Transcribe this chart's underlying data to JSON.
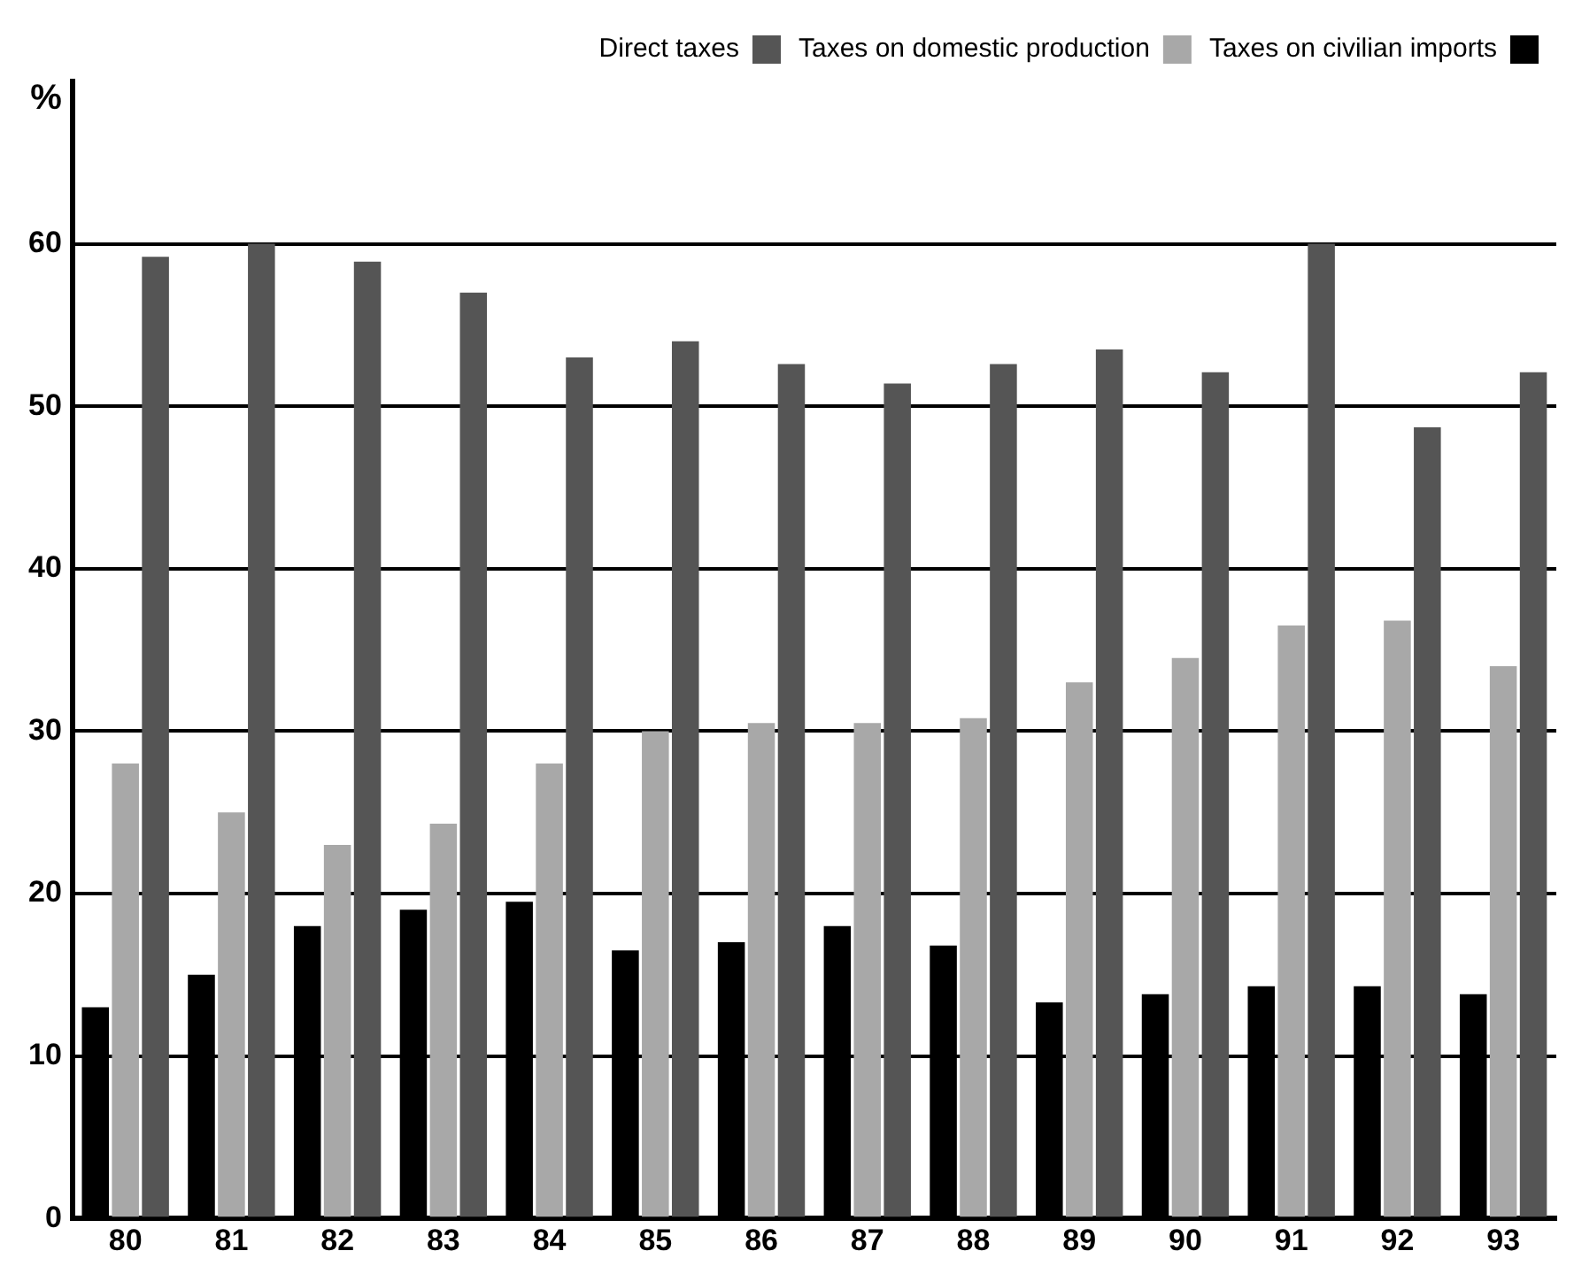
{
  "chart_data": {
    "type": "bar",
    "ylabel": "%",
    "categories": [
      "80",
      "81",
      "82",
      "83",
      "84",
      "85",
      "86",
      "87",
      "88",
      "89",
      "90",
      "91",
      "92",
      "93"
    ],
    "series": [
      {
        "name": "Taxes on civilian imports",
        "color": "#000000",
        "values": [
          13,
          15,
          18,
          19,
          19.5,
          16.5,
          17,
          18,
          16.8,
          13.3,
          13.8,
          14.3,
          14.3,
          13.8
        ]
      },
      {
        "name": "Taxes on domestic production",
        "color": "#a8a8a8",
        "values": [
          28,
          25,
          23,
          24.3,
          28,
          30,
          30.5,
          30.5,
          30.8,
          33,
          34.5,
          36.5,
          36.8,
          34
        ]
      },
      {
        "name": "Direct taxes",
        "color": "#555555",
        "values": [
          59.2,
          60,
          58.9,
          57,
          53,
          54,
          52.6,
          51.4,
          52.6,
          53.5,
          52.1,
          60,
          48.7,
          52.1
        ]
      }
    ],
    "ylim": [
      0,
      70
    ],
    "yticks": [
      0,
      10,
      20,
      30,
      40,
      50,
      60
    ],
    "grid": "y",
    "legend": "top right"
  }
}
